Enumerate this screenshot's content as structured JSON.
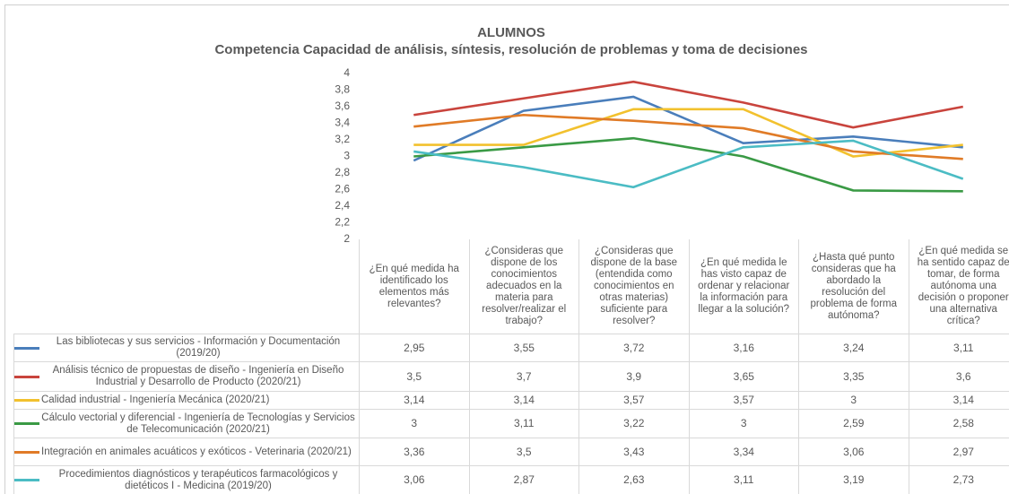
{
  "chart_data": {
    "type": "line",
    "title": "ALUMNOS",
    "subtitle": "Competencia Capacidad de análisis, síntesis, resolución de problemas y toma de decisiones",
    "categories": [
      "¿En qué medida ha identificado los elementos más relevantes?",
      "¿Consideras que dispone de los conocimientos adecuados en la materia para resolver/realizar el trabajo?",
      "¿Consideras que dispone de la base (entendida como conocimientos en otras materias) suficiente para resolver?",
      "¿En qué medida le has visto capaz de ordenar y relacionar la información para llegar a la solución?",
      "¿Hasta qué punto consideras que ha abordado la resolución del problema de forma autónoma?",
      "¿En qué medida se ha sentido capaz de tomar, de forma autónoma una decisión o proponer una alternativa crítica?"
    ],
    "series": [
      {
        "name": "Las bibliotecas y sus servicios - Información y Documentación (2019/20)",
        "color": "#4a7ebb",
        "values": [
          2.95,
          3.55,
          3.72,
          3.16,
          3.24,
          3.11
        ],
        "value_labels": [
          "2,95",
          "3,55",
          "3,72",
          "3,16",
          "3,24",
          "3,11"
        ]
      },
      {
        "name": "Análisis técnico de propuestas de diseño - Ingeniería en Diseño Industrial y Desarrollo de Producto (2020/21)",
        "color": "#c9443d",
        "values": [
          3.5,
          3.7,
          3.9,
          3.65,
          3.35,
          3.6
        ],
        "value_labels": [
          "3,5",
          "3,7",
          "3,9",
          "3,65",
          "3,35",
          "3,6"
        ]
      },
      {
        "name": "Calidad industrial - Ingeniería Mecánica (2020/21)",
        "color": "#f2c12e",
        "values": [
          3.14,
          3.14,
          3.57,
          3.57,
          3,
          3.14
        ],
        "value_labels": [
          "3,14",
          "3,14",
          "3,57",
          "3,57",
          "3",
          "3,14"
        ]
      },
      {
        "name": "Cálculo vectorial y diferencial - Ingeniería de Tecnologías y Servicios de Telecomunicación (2020/21)",
        "color": "#3a9a45",
        "values": [
          3,
          3.11,
          3.22,
          3,
          2.59,
          2.58
        ],
        "value_labels": [
          "3",
          "3,11",
          "3,22",
          "3",
          "2,59",
          "2,58"
        ]
      },
      {
        "name": "Integración en animales acuáticos y exóticos - Veterinaria (2020/21)",
        "color": "#e07b27",
        "values": [
          3.36,
          3.5,
          3.43,
          3.34,
          3.06,
          2.97
        ],
        "value_labels": [
          "3,36",
          "3,5",
          "3,43",
          "3,34",
          "3,06",
          "2,97"
        ]
      },
      {
        "name": "Procedimientos diagnósticos y terapéuticos farmacológicos y dietéticos I - Medicina (2019/20)",
        "color": "#4bbcc4",
        "values": [
          3.06,
          2.87,
          2.63,
          3.11,
          3.19,
          2.73
        ],
        "value_labels": [
          "3,06",
          "2,87",
          "2,63",
          "3,11",
          "3,19",
          "2,73"
        ]
      }
    ],
    "ylim": [
      2,
      4
    ],
    "yticks": [
      2,
      {
        "value": 2.2,
        "label": "2,2"
      },
      {
        "value": 2.4,
        "label": "2,4"
      },
      {
        "value": 2.6,
        "label": "2,6"
      },
      {
        "value": 2.8,
        "label": "2,8"
      },
      3,
      {
        "value": 3.2,
        "label": "3,2"
      },
      {
        "value": 3.4,
        "label": "3,4"
      },
      {
        "value": 3.6,
        "label": "3,6"
      },
      {
        "value": 3.8,
        "label": "3,8"
      },
      4
    ],
    "grid": false
  }
}
